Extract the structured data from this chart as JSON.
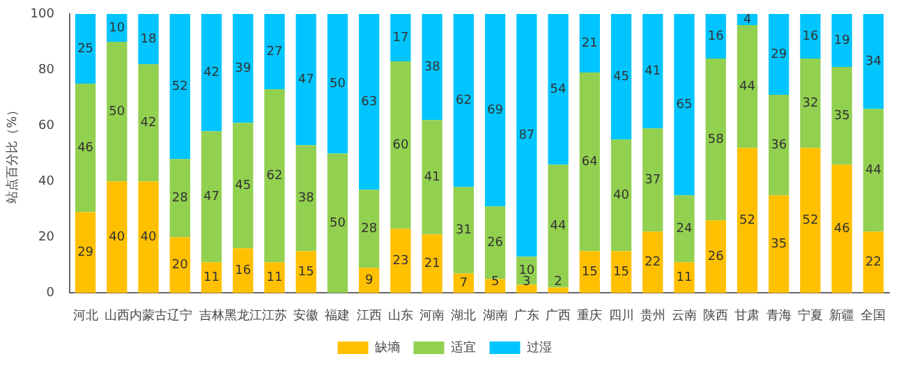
{
  "chart_data": {
    "type": "bar",
    "stacked": true,
    "ylabel": "站点百分比（%）",
    "categories": [
      "河北",
      "山西",
      "内蒙古",
      "辽宁",
      "吉林",
      "黑龙江",
      "江苏",
      "安徽",
      "福建",
      "江西",
      "山东",
      "河南",
      "湖北",
      "湖南",
      "广东",
      "广西",
      "重庆",
      "四川",
      "贵州",
      "云南",
      "陕西",
      "甘肃",
      "青海",
      "宁夏",
      "新疆",
      "全国"
    ],
    "series": [
      {
        "name": "缺墒",
        "color": "#ffc000",
        "values": [
          29,
          40,
          40,
          20,
          11,
          16,
          11,
          15,
          0,
          9,
          23,
          21,
          7,
          5,
          3,
          2,
          15,
          15,
          22,
          11,
          26,
          52,
          35,
          52,
          46,
          22
        ],
        "value_labels": [
          "29",
          "40",
          "40",
          "20",
          "11",
          "16",
          "11",
          "15",
          null,
          "9",
          "23",
          "21",
          "7",
          "5",
          "3",
          "2",
          "15",
          "15",
          "22",
          "11",
          "26",
          "52",
          "35",
          "52",
          "46",
          "22"
        ]
      },
      {
        "name": "适宜",
        "color": "#92d050",
        "values": [
          46,
          50,
          42,
          28,
          47,
          45,
          62,
          38,
          50,
          28,
          60,
          41,
          31,
          26,
          10,
          44,
          64,
          40,
          37,
          24,
          58,
          44,
          36,
          32,
          35,
          44
        ],
        "value_labels": [
          "46",
          "50",
          "42",
          "28",
          "47",
          "45",
          "62",
          "38",
          "50",
          "28",
          "60",
          "41",
          "31",
          "26",
          "10",
          "44",
          "64",
          "40",
          "37",
          "24",
          "58",
          "44",
          "36",
          "32",
          "35",
          "44"
        ]
      },
      {
        "name": "过湿",
        "color": "#00c5ff",
        "values": [
          25,
          10,
          18,
          52,
          42,
          39,
          27,
          47,
          50,
          63,
          17,
          38,
          62,
          69,
          87,
          54,
          21,
          45,
          41,
          65,
          16,
          4,
          29,
          16,
          19,
          34
        ],
        "value_labels": [
          "25",
          "10",
          "18",
          "52",
          "42",
          "39",
          "27",
          "47",
          "50",
          "63",
          "17",
          "38",
          "62",
          "69",
          "87",
          "54",
          "21",
          "45",
          "41",
          "65",
          "16",
          "4",
          "29",
          "16",
          "19",
          "34"
        ]
      }
    ],
    "ylim": [
      0,
      100
    ],
    "yticks": [
      0,
      20,
      40,
      60,
      80,
      100
    ],
    "grid": false,
    "legend": "bottom"
  }
}
